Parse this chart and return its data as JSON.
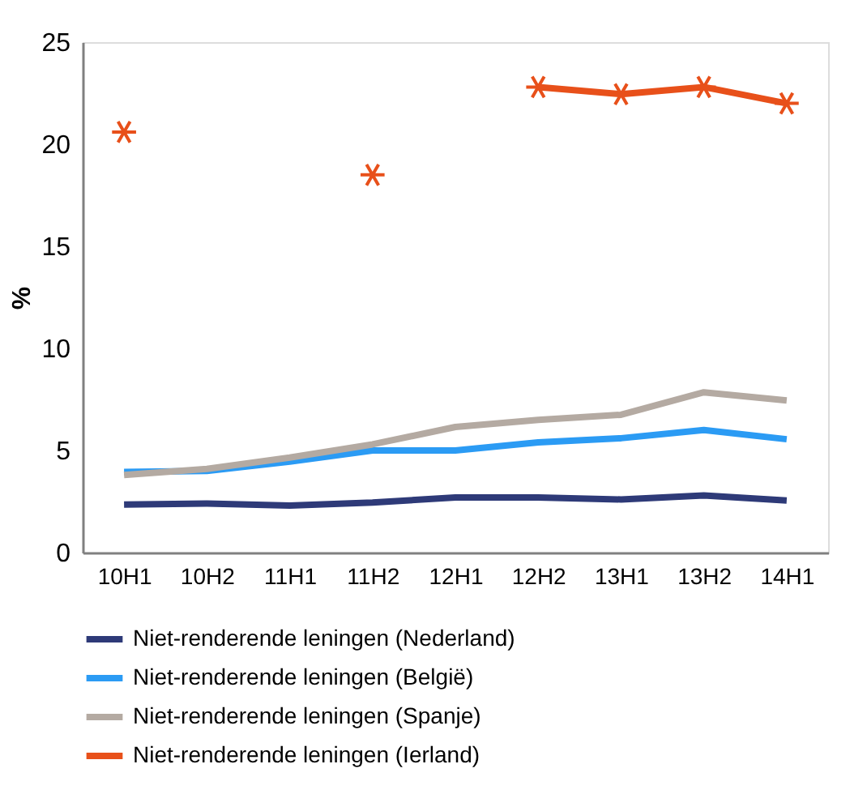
{
  "chart_data": {
    "type": "line",
    "ylabel": "%",
    "categories": [
      "10H1",
      "10H2",
      "11H1",
      "11H2",
      "12H1",
      "12H2",
      "13H1",
      "13H2",
      "14H1"
    ],
    "series": [
      {
        "name": "Niet-renderende leningen (Nederland)",
        "color": "#2e3a78",
        "marker": "none",
        "values": [
          2.35,
          2.4,
          2.3,
          2.45,
          2.7,
          2.7,
          2.6,
          2.8,
          2.55
        ]
      },
      {
        "name": "Niet-renderende leningen (België)",
        "color": "#2b9bf4",
        "marker": "none",
        "values": [
          3.95,
          4.0,
          4.45,
          5.0,
          5.0,
          5.4,
          5.6,
          6.0,
          5.55
        ]
      },
      {
        "name": "Niet-renderende leningen (Spanje)",
        "color": "#b4aaa2",
        "marker": "none",
        "values": [
          3.8,
          4.1,
          4.65,
          5.3,
          6.15,
          6.5,
          6.75,
          7.85,
          7.45
        ]
      },
      {
        "name": "Niet-renderende leningen (Ierland)",
        "color": "#e8501a",
        "marker": "cross",
        "values": [
          20.6,
          null,
          null,
          18.5,
          null,
          22.8,
          22.45,
          22.8,
          22.0
        ]
      }
    ],
    "ylim": [
      0,
      25
    ],
    "yticks": [
      0,
      5,
      10,
      15,
      20,
      25
    ],
    "grid": false,
    "legend": "bottom"
  }
}
